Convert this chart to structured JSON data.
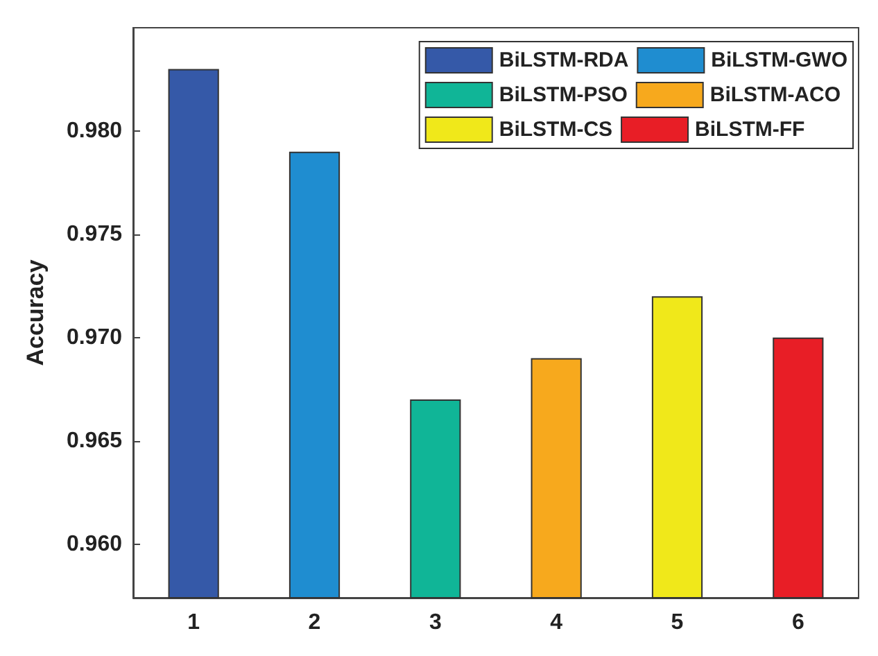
{
  "chart_data": {
    "type": "bar",
    "ylabel": "Accuracy",
    "categories": [
      "1",
      "2",
      "3",
      "4",
      "5",
      "6"
    ],
    "series": [
      {
        "name": "BiLSTM-RDA",
        "color": "#3559a8",
        "values": [
          0.983,
          null,
          null,
          null,
          null,
          null
        ]
      },
      {
        "name": "BiLSTM-GWO",
        "color": "#1f8dd0",
        "values": [
          null,
          0.979,
          null,
          null,
          null,
          null
        ]
      },
      {
        "name": "BiLSTM-PSO",
        "color": "#10b597",
        "values": [
          null,
          null,
          0.967,
          null,
          null,
          null
        ]
      },
      {
        "name": "BiLSTM-ACO",
        "color": "#f7a91d",
        "values": [
          null,
          null,
          null,
          0.969,
          null,
          null
        ]
      },
      {
        "name": "BiLSTM-CS",
        "color": "#f0e81a",
        "values": [
          null,
          null,
          null,
          null,
          0.972,
          null
        ]
      },
      {
        "name": "BiLSTM-FF",
        "color": "#e81e26",
        "values": [
          null,
          null,
          null,
          null,
          null,
          0.97
        ]
      }
    ],
    "ylim": [
      0.9574,
      0.985
    ],
    "yticks": [
      {
        "value": 0.96,
        "label": "0.960"
      },
      {
        "value": 0.965,
        "label": "0.965"
      },
      {
        "value": 0.97,
        "label": "0.970"
      },
      {
        "value": 0.975,
        "label": "0.975"
      },
      {
        "value": 0.98,
        "label": "0.980"
      }
    ],
    "grid": false,
    "legend": "top right"
  }
}
